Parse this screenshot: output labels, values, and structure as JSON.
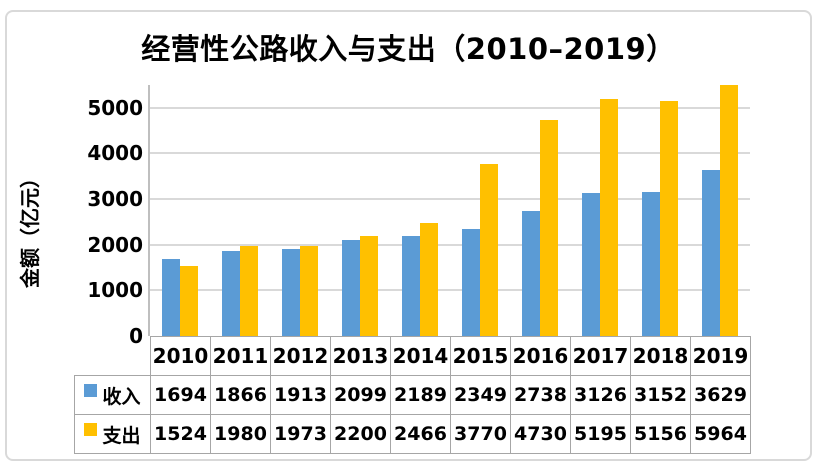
{
  "figure": {
    "border_color": "#D9D9D9",
    "background": "#FFFFFF"
  },
  "chart_data": {
    "type": "bar",
    "title": "经营性公路收入与支出（2010–2019）",
    "ylabel": "金额（亿元）",
    "xlabel": "",
    "categories": [
      "2010",
      "2011",
      "2012",
      "2013",
      "2014",
      "2015",
      "2016",
      "2017",
      "2018",
      "2019"
    ],
    "series": [
      {
        "name": "收入",
        "color": "#5B9BD5",
        "values": [
          1694,
          1866,
          1913,
          2099,
          2189,
          2349,
          2738,
          3126,
          3152,
          3629
        ]
      },
      {
        "name": "支出",
        "color": "#FFC000",
        "values": [
          1524,
          1980,
          1973,
          2200,
          2466,
          3770,
          4730,
          5195,
          5156,
          5964
        ]
      }
    ],
    "yticks": [
      0,
      1000,
      2000,
      3000,
      4000,
      5000
    ],
    "ylim": [
      0,
      5500
    ],
    "grid": true,
    "gridline_color": "#D9D9D9",
    "axis_line_color": "#BFBFBF",
    "table_border_color": "#A6A6A6",
    "legend_position": "table-left",
    "note_clipped_bar": "2019 支出 (5964) exceeds axis max and is clipped at plot top"
  }
}
